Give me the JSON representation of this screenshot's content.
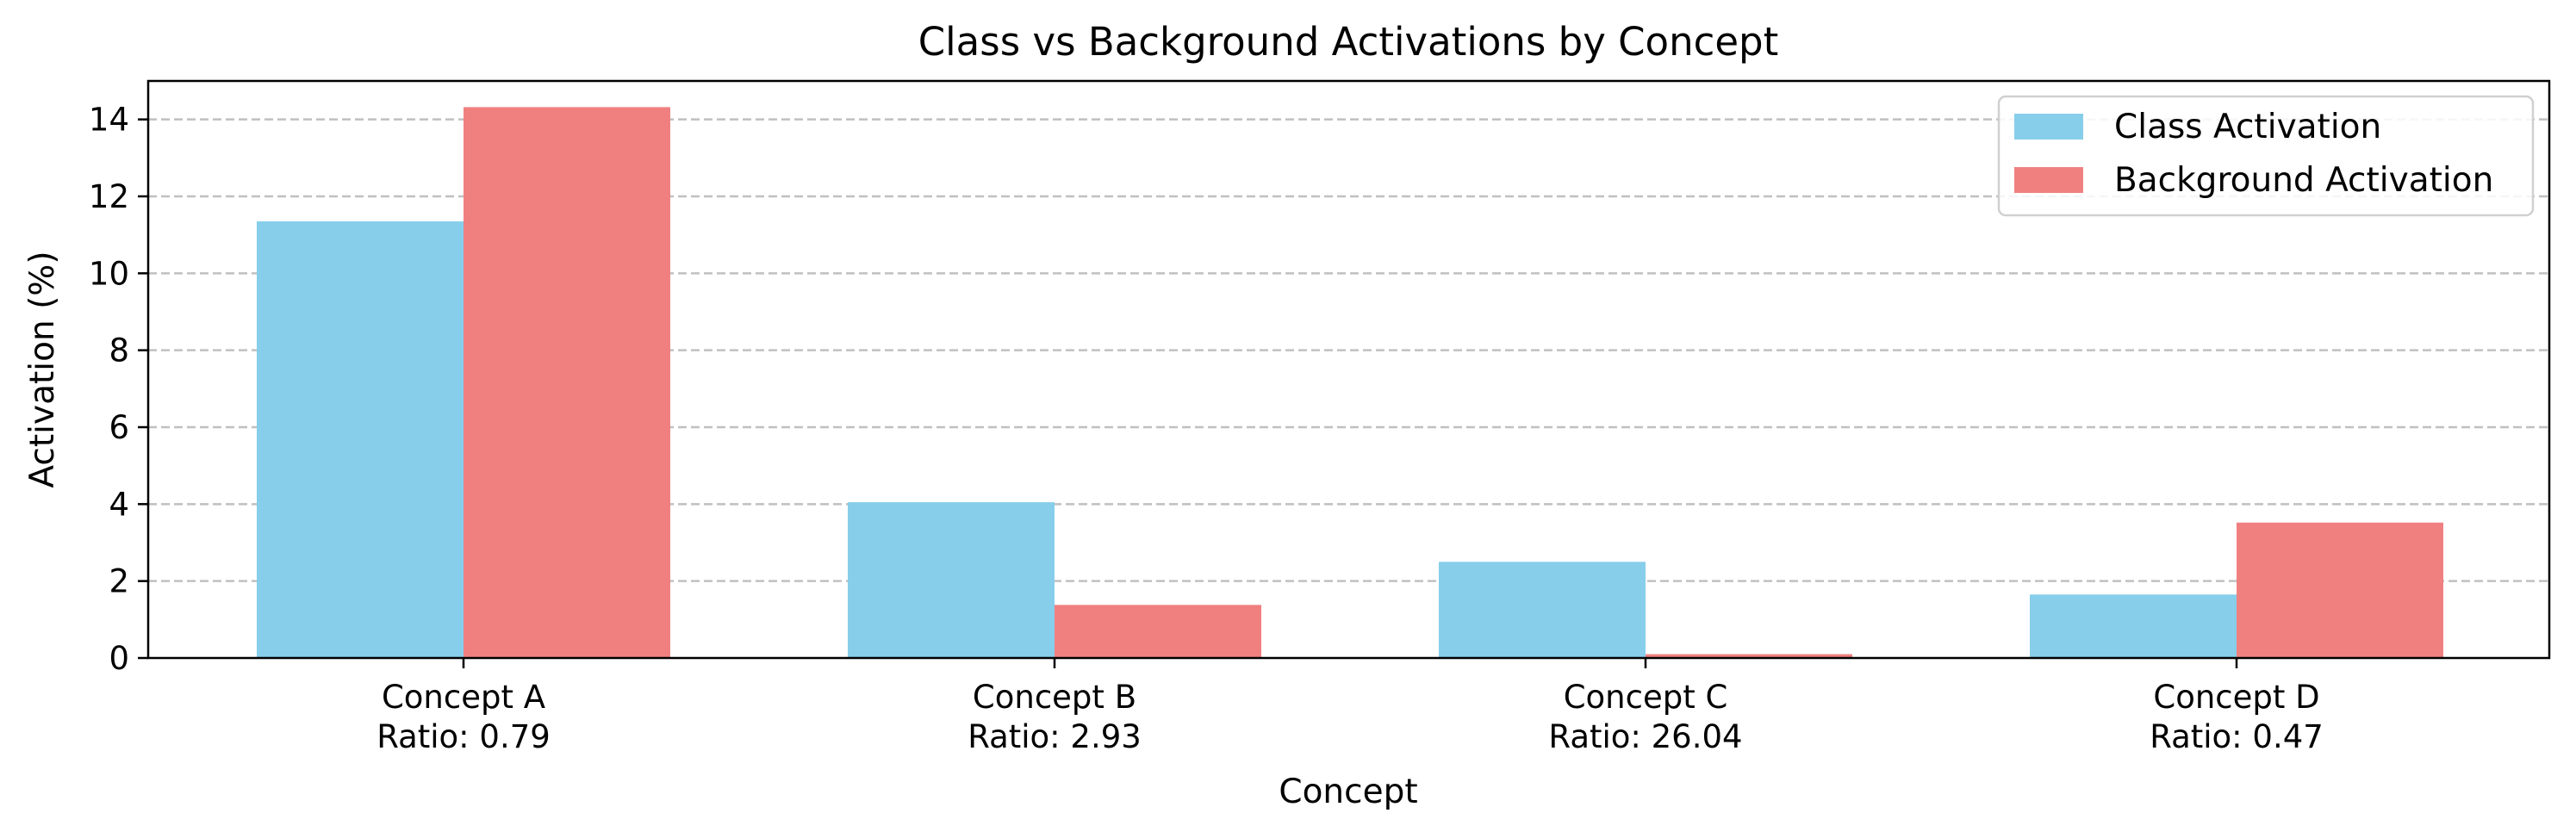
{
  "chart_data": {
    "type": "bar",
    "title": "Class vs Background Activations by Concept",
    "xlabel": "Concept",
    "ylabel": "Activation (%)",
    "categories": [
      "Concept A",
      "Concept B",
      "Concept C",
      "Concept D"
    ],
    "category_sublabels": [
      "Ratio: 0.79",
      "Ratio: 2.93",
      "Ratio: 26.04",
      "Ratio: 0.47"
    ],
    "series": [
      {
        "name": "Class Activation",
        "color": "#87ceeb",
        "values": [
          11.35,
          4.05,
          2.5,
          1.65
        ]
      },
      {
        "name": "Background Activation",
        "color": "#f08080",
        "values": [
          14.32,
          1.38,
          0.1,
          3.52
        ]
      }
    ],
    "ylim": [
      0,
      15
    ],
    "yticks": [
      0,
      2,
      4,
      6,
      8,
      10,
      12,
      14
    ],
    "grid": {
      "axis": "y",
      "style": "dashed"
    },
    "legend_position": "top-right"
  }
}
